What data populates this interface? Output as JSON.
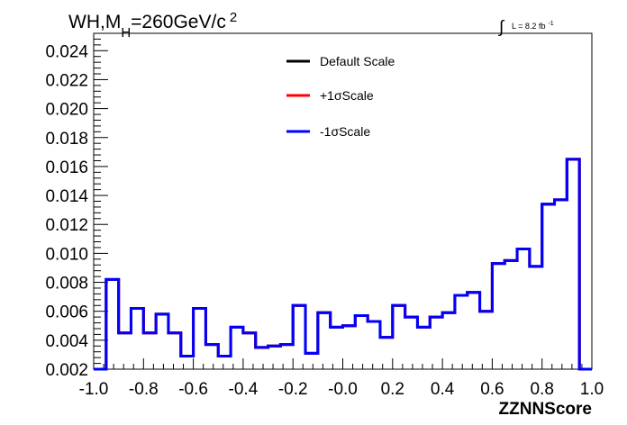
{
  "chart_data": {
    "type": "line",
    "title_parts": {
      "prefix": "WH,M",
      "subscript": "H",
      "main": "=260GeV/c",
      "superscript": "2"
    },
    "luminosity": {
      "symbol": "∫",
      "text": "L = 8.2 fb",
      "superscript": "-1"
    },
    "xlabel": "ZZNNScore",
    "ylabel": "",
    "xlim": [
      -1.0,
      1.0
    ],
    "ylim": [
      0.002,
      0.0252
    ],
    "x_ticks": [
      "-1.0",
      "-0.8",
      "-0.6",
      "-0.4",
      "-0.2",
      "-0.0",
      "0.2",
      "0.4",
      "0.6",
      "0.8",
      "1.0"
    ],
    "y_ticks": [
      "0.002",
      "0.004",
      "0.006",
      "0.008",
      "0.010",
      "0.012",
      "0.014",
      "0.016",
      "0.018",
      "0.020",
      "0.022",
      "0.024"
    ],
    "bin_edges": [
      -1.0,
      -0.95,
      -0.9,
      -0.85,
      -0.8,
      -0.75,
      -0.7,
      -0.65,
      -0.6,
      -0.55,
      -0.5,
      -0.45,
      -0.4,
      -0.35,
      -0.3,
      -0.25,
      -0.2,
      -0.15,
      -0.1,
      -0.05,
      0.0,
      0.05,
      0.1,
      0.15,
      0.2,
      0.25,
      0.3,
      0.35,
      0.4,
      0.45,
      0.5,
      0.55,
      0.6,
      0.65,
      0.7,
      0.75,
      0.8,
      0.85,
      0.9,
      0.95,
      1.0
    ],
    "series": [
      {
        "name": "Default Scale",
        "color": "#000000",
        "values": [
          0.002,
          0.0082,
          0.0045,
          0.0062,
          0.0045,
          0.0058,
          0.0045,
          0.0029,
          0.0062,
          0.0037,
          0.0029,
          0.0049,
          0.0045,
          0.0035,
          0.0036,
          0.0037,
          0.0064,
          0.0031,
          0.0059,
          0.0049,
          0.005,
          0.0057,
          0.0053,
          0.0042,
          0.0064,
          0.0056,
          0.0049,
          0.0056,
          0.0059,
          0.0071,
          0.0073,
          0.006,
          0.0093,
          0.0095,
          0.0103,
          0.0091,
          0.0134,
          0.0137,
          0.0165,
          0.002
        ]
      },
      {
        "name": "+1σScale",
        "color": "#ff0000",
        "values": [
          0.002,
          0.0082,
          0.0045,
          0.0062,
          0.0045,
          0.0058,
          0.0045,
          0.0029,
          0.0062,
          0.0037,
          0.0029,
          0.0049,
          0.0045,
          0.0035,
          0.0036,
          0.0037,
          0.0064,
          0.0031,
          0.0059,
          0.0049,
          0.005,
          0.0057,
          0.0053,
          0.0042,
          0.0064,
          0.0056,
          0.0049,
          0.0056,
          0.0059,
          0.0071,
          0.0073,
          0.006,
          0.0093,
          0.0095,
          0.0103,
          0.0091,
          0.0134,
          0.0137,
          0.0165,
          0.002
        ]
      },
      {
        "name": "-1σScale",
        "color": "#0000ff",
        "values": [
          0.002,
          0.0082,
          0.0045,
          0.0062,
          0.0045,
          0.0058,
          0.0045,
          0.0029,
          0.0062,
          0.0037,
          0.0029,
          0.0049,
          0.0045,
          0.0035,
          0.0036,
          0.0037,
          0.0064,
          0.0031,
          0.0059,
          0.0049,
          0.005,
          0.0057,
          0.0053,
          0.0042,
          0.0064,
          0.0056,
          0.0049,
          0.0056,
          0.0059,
          0.0071,
          0.0073,
          0.006,
          0.0093,
          0.0095,
          0.0103,
          0.0091,
          0.0134,
          0.0137,
          0.0165,
          0.002
        ]
      }
    ],
    "legend_position": "top-center",
    "grid": false
  }
}
